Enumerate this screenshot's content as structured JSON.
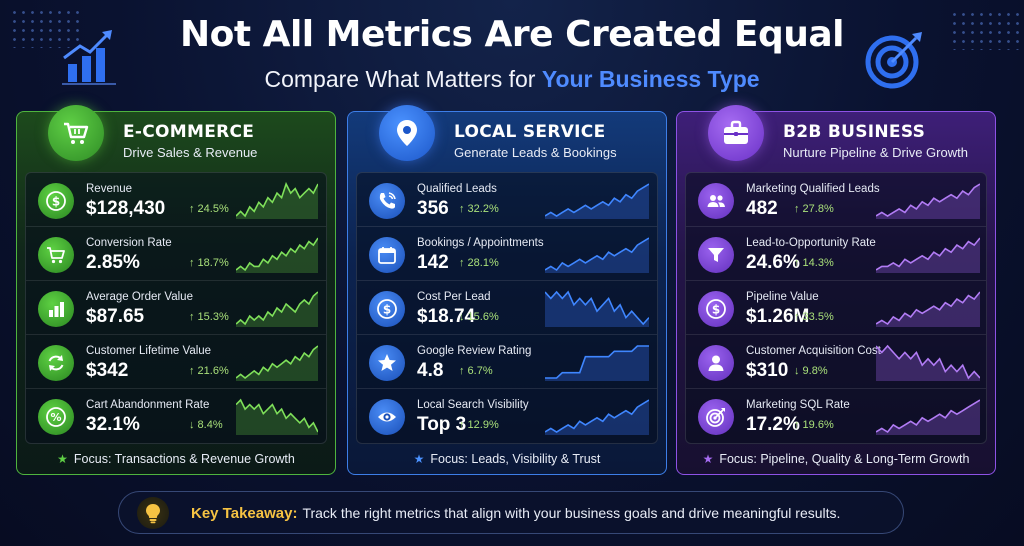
{
  "header": {
    "title": "Not All Metrics Are Created Equal",
    "subtitle_prefix": "Compare What Matters for ",
    "subtitle_accent": "Your Business Type"
  },
  "colors": {
    "ecommerce": "#4fb43e",
    "local": "#3d7ee8",
    "b2b": "#8e52e6",
    "accent_blue": "#4f8bff",
    "takeaway_gold": "#f6c343",
    "delta_green": "#a9e07a"
  },
  "panels": [
    {
      "key": "ecommerce",
      "icon": "shopping-cart-icon",
      "title": "E-COMMERCE",
      "subtitle": "Drive Sales & Revenue",
      "metrics": [
        {
          "label": "Revenue",
          "value": "$128,430",
          "delta": "↑ 24.5%",
          "icon": "dollar-icon",
          "trend": [
            3,
            4,
            3,
            5,
            4,
            6,
            5,
            7,
            6,
            8,
            7,
            10,
            8,
            9,
            7,
            8,
            9,
            8,
            10
          ]
        },
        {
          "label": "Conversion Rate",
          "value": "2.85%",
          "delta": "↑ 18.7%",
          "icon": "cart-icon",
          "trend": [
            2,
            3,
            2,
            4,
            3,
            3,
            5,
            4,
            6,
            5,
            7,
            6,
            8,
            7,
            9,
            8,
            10,
            9,
            11
          ]
        },
        {
          "label": "Average Order Value",
          "value": "$87.65",
          "delta": "↑ 15.3%",
          "icon": "bar-chart-icon",
          "trend": [
            3,
            4,
            3,
            5,
            4,
            5,
            4,
            6,
            5,
            7,
            6,
            8,
            7,
            6,
            8,
            9,
            8,
            10,
            11
          ]
        },
        {
          "label": "Customer Lifetime Value",
          "value": "$342",
          "delta": "↑ 21.6%",
          "icon": "refresh-icon",
          "trend": [
            2,
            3,
            2,
            3,
            4,
            3,
            5,
            4,
            6,
            5,
            6,
            7,
            6,
            8,
            7,
            9,
            8,
            10,
            11
          ]
        },
        {
          "label": "Cart Abandonment Rate",
          "value": "32.1%",
          "delta": "↓ 8.4%",
          "icon": "percent-icon",
          "trend": [
            9,
            10,
            8,
            9,
            8,
            9,
            7,
            8,
            9,
            7,
            8,
            6,
            7,
            6,
            5,
            6,
            4,
            5,
            3
          ]
        }
      ],
      "focus": "Focus: Transactions & Revenue Growth"
    },
    {
      "key": "local",
      "icon": "map-pin-icon",
      "title": "LOCAL SERVICE",
      "subtitle": "Generate Leads & Bookings",
      "metrics": [
        {
          "label": "Qualified Leads",
          "value": "356",
          "delta": "↑ 32.2%",
          "icon": "phone-icon",
          "trend": [
            2,
            3,
            2,
            3,
            4,
            3,
            4,
            5,
            4,
            5,
            6,
            5,
            7,
            6,
            8,
            7,
            9,
            10,
            11
          ]
        },
        {
          "label": "Bookings / Appointments",
          "value": "142",
          "delta": "↑ 28.1%",
          "icon": "calendar-icon",
          "trend": [
            2,
            3,
            2,
            4,
            3,
            4,
            5,
            4,
            5,
            6,
            5,
            7,
            6,
            7,
            8,
            7,
            9,
            10,
            11
          ]
        },
        {
          "label": "Cost Per Lead",
          "value": "$18.74",
          "delta": "↓ 15.6%",
          "icon": "dollar-icon",
          "trend": [
            9,
            8,
            9,
            8,
            9,
            7,
            8,
            7,
            8,
            6,
            7,
            8,
            6,
            7,
            5,
            6,
            5,
            4,
            5
          ]
        },
        {
          "label": "Google Review Rating",
          "value": "4.8",
          "delta": "↑ 6.7%",
          "icon": "star-icon",
          "trend": [
            3,
            3,
            3,
            4,
            4,
            4,
            4,
            7,
            7,
            7,
            7,
            7,
            8,
            8,
            8,
            8,
            9,
            9,
            9
          ]
        },
        {
          "label": "Local Search Visibility",
          "value": "Top 3",
          "delta": "↑ 12.9%",
          "icon": "eye-icon",
          "trend": [
            2,
            3,
            2,
            3,
            4,
            3,
            5,
            4,
            5,
            6,
            5,
            7,
            6,
            7,
            8,
            7,
            9,
            10,
            11
          ]
        }
      ],
      "focus": "Focus: Leads, Visibility & Trust"
    },
    {
      "key": "b2b",
      "icon": "briefcase-icon",
      "title": "B2B BUSINESS",
      "subtitle": "Nurture Pipeline & Drive Growth",
      "metrics": [
        {
          "label": "Marketing Qualified Leads",
          "value": "482",
          "delta": "↑ 27.8%",
          "icon": "users-icon",
          "trend": [
            2,
            3,
            2,
            3,
            4,
            3,
            5,
            4,
            6,
            5,
            7,
            6,
            7,
            8,
            7,
            9,
            8,
            10,
            11
          ]
        },
        {
          "label": "Lead-to-Opportunity Rate",
          "value": "24.6%",
          "delta": "↑ 14.3%",
          "icon": "funnel-icon",
          "trend": [
            2,
            3,
            3,
            4,
            3,
            5,
            4,
            5,
            6,
            5,
            7,
            6,
            8,
            7,
            9,
            8,
            10,
            9,
            11
          ]
        },
        {
          "label": "Pipeline Value",
          "value": "$1.26M",
          "delta": "↑ 33.5%",
          "icon": "dollar-icon",
          "trend": [
            2,
            3,
            2,
            4,
            3,
            5,
            4,
            6,
            5,
            6,
            7,
            6,
            8,
            7,
            9,
            8,
            10,
            9,
            11
          ]
        },
        {
          "label": "Customer Acquisition Cost",
          "value": "$310",
          "delta": "↓ 9.8%",
          "icon": "user-icon",
          "trend": [
            9,
            8,
            9,
            8,
            7,
            8,
            7,
            8,
            6,
            7,
            6,
            7,
            5,
            6,
            5,
            6,
            4,
            5,
            4
          ]
        },
        {
          "label": "Marketing SQL Rate",
          "value": "17.2%",
          "delta": "↑ 19.6%",
          "icon": "target-icon",
          "trend": [
            2,
            3,
            2,
            4,
            3,
            4,
            5,
            4,
            6,
            5,
            6,
            7,
            6,
            8,
            7,
            8,
            9,
            10,
            11
          ]
        }
      ],
      "focus": "Focus: Pipeline, Quality & Long-Term Growth"
    }
  ],
  "takeaway": {
    "label": "Key Takeaway:",
    "text": "Track the right metrics that align with your business goals and drive meaningful results."
  }
}
